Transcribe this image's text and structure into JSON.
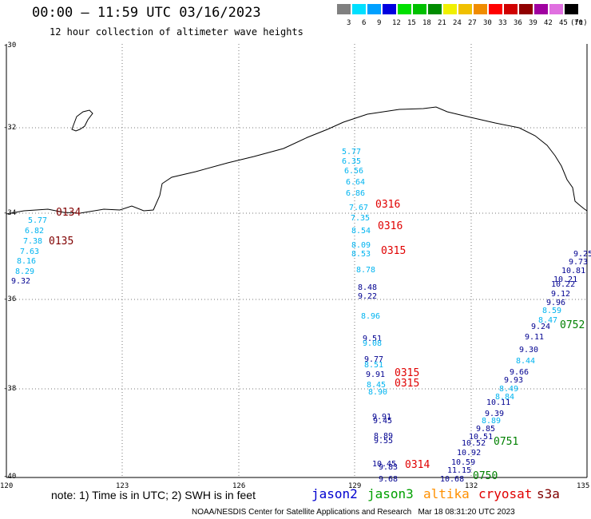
{
  "header": {
    "title": "00:00 – 11:59 UTC 03/16/2023",
    "subtitle": "12 hour collection of altimeter wave heights"
  },
  "scale": {
    "unit": "(ft)",
    "swatches": [
      {
        "label": "3",
        "color": "#808080"
      },
      {
        "label": "6",
        "color": "#00e0ff"
      },
      {
        "label": "9",
        "color": "#00a0ff"
      },
      {
        "label": "12",
        "color": "#0000e0"
      },
      {
        "label": "15",
        "color": "#00e000"
      },
      {
        "label": "18",
        "color": "#00c000"
      },
      {
        "label": "21",
        "color": "#008c00"
      },
      {
        "label": "24",
        "color": "#f0f000"
      },
      {
        "label": "27",
        "color": "#f0c000"
      },
      {
        "label": "30",
        "color": "#f08c00"
      },
      {
        "label": "33",
        "color": "#ff0000"
      },
      {
        "label": "36",
        "color": "#d00000"
      },
      {
        "label": "39",
        "color": "#900000"
      },
      {
        "label": "42",
        "color": "#a000a0"
      },
      {
        "label": "45",
        "color": "#e070e0"
      },
      {
        "label": "70",
        "color": "#000000"
      }
    ]
  },
  "axes": {
    "lat_labels": [
      "-30",
      "-32",
      "-34",
      "-36",
      "-38",
      "-40"
    ],
    "lon_labels": [
      "120",
      "123",
      "126",
      "129",
      "132",
      "135"
    ]
  },
  "footer": {
    "note": "note: 1) Time is in UTC; 2) SWH is in feet",
    "satellites": [
      {
        "name": "jason2",
        "color": "#0000d0"
      },
      {
        "name": "jason3",
        "color": "#00a000"
      },
      {
        "name": "altika",
        "color": "#ff9000"
      },
      {
        "name": "cryosat",
        "color": "#e00000"
      },
      {
        "name": "s3a",
        "color": "#800000"
      }
    ],
    "credit": "NOAA/NESDIS Center for Satellite Applications and Research   Mar 18 08:31:20 UTC 2023"
  },
  "colors": {
    "cyan": "#00b4f0",
    "blue": "#000090",
    "red": "#e00000",
    "darkred": "#800000",
    "green": "#008000"
  },
  "time_labels": [
    {
      "text": "0134",
      "color": "darkred"
    },
    {
      "text": "0135",
      "color": "darkred"
    },
    {
      "text": "0316",
      "color": "red"
    },
    {
      "text": "0316",
      "color": "red"
    },
    {
      "text": "0315",
      "color": "red"
    },
    {
      "text": "0315",
      "color": "red"
    },
    {
      "text": "0315",
      "color": "red"
    },
    {
      "text": "0314",
      "color": "red"
    },
    {
      "text": "0752",
      "color": "green"
    },
    {
      "text": "0751",
      "color": "green"
    },
    {
      "text": "0750",
      "color": "green"
    }
  ],
  "observations": [
    {
      "text": "5.77",
      "color": "cyan"
    },
    {
      "text": "6.82",
      "color": "cyan"
    },
    {
      "text": "7.38",
      "color": "cyan"
    },
    {
      "text": "7.63",
      "color": "cyan"
    },
    {
      "text": "8.16",
      "color": "cyan"
    },
    {
      "text": "8.29",
      "color": "cyan"
    },
    {
      "text": "9.32",
      "color": "blue"
    },
    {
      "text": "5.77",
      "color": "cyan"
    },
    {
      "text": "6.35",
      "color": "cyan"
    },
    {
      "text": "6.56",
      "color": "cyan"
    },
    {
      "text": "6.64",
      "color": "cyan"
    },
    {
      "text": "6.86",
      "color": "cyan"
    },
    {
      "text": "7.67",
      "color": "cyan"
    },
    {
      "text": "7.35",
      "color": "cyan"
    },
    {
      "text": "8.54",
      "color": "cyan"
    },
    {
      "text": "8.09",
      "color": "cyan"
    },
    {
      "text": "8.53",
      "color": "cyan"
    },
    {
      "text": "8.78",
      "color": "cyan"
    },
    {
      "text": "8.48",
      "color": "blue"
    },
    {
      "text": "9.22",
      "color": "blue"
    },
    {
      "text": "8.96",
      "color": "cyan"
    },
    {
      "text": "9.51",
      "color": "blue"
    },
    {
      "text": "9.08",
      "color": "cyan"
    },
    {
      "text": "9.77",
      "color": "blue"
    },
    {
      "text": "8.51",
      "color": "cyan"
    },
    {
      "text": "9.91",
      "color": "blue"
    },
    {
      "text": "8.45",
      "color": "cyan"
    },
    {
      "text": "8.90",
      "color": "cyan"
    },
    {
      "text": "9.91",
      "color": "blue"
    },
    {
      "text": "9.45",
      "color": "blue"
    },
    {
      "text": "8.89",
      "color": "blue"
    },
    {
      "text": "9.55",
      "color": "blue"
    },
    {
      "text": "10.45",
      "color": "blue"
    },
    {
      "text": "9.83",
      "color": "blue"
    },
    {
      "text": "9.68",
      "color": "blue"
    },
    {
      "text": "9.25",
      "color": "blue"
    },
    {
      "text": "9.73",
      "color": "blue"
    },
    {
      "text": "10.81",
      "color": "blue"
    },
    {
      "text": "10.21",
      "color": "blue"
    },
    {
      "text": "10.22",
      "color": "blue"
    },
    {
      "text": "9.12",
      "color": "blue"
    },
    {
      "text": "9.96",
      "color": "blue"
    },
    {
      "text": "8.59",
      "color": "cyan"
    },
    {
      "text": "8.47",
      "color": "cyan"
    },
    {
      "text": "9.24",
      "color": "blue"
    },
    {
      "text": "9.11",
      "color": "blue"
    },
    {
      "text": "9.30",
      "color": "blue"
    },
    {
      "text": "8.44",
      "color": "cyan"
    },
    {
      "text": "9.66",
      "color": "blue"
    },
    {
      "text": "9.93",
      "color": "blue"
    },
    {
      "text": "8.49",
      "color": "cyan"
    },
    {
      "text": "8.84",
      "color": "cyan"
    },
    {
      "text": "10.11",
      "color": "blue"
    },
    {
      "text": "9.39",
      "color": "blue"
    },
    {
      "text": "8.89",
      "color": "cyan"
    },
    {
      "text": "9.85",
      "color": "blue"
    },
    {
      "text": "10.51",
      "color": "blue"
    },
    {
      "text": "10.52",
      "color": "blue"
    },
    {
      "text": "10.92",
      "color": "blue"
    },
    {
      "text": "10.59",
      "color": "blue"
    },
    {
      "text": "11.15",
      "color": "blue"
    },
    {
      "text": "10.68",
      "color": "blue"
    }
  ]
}
